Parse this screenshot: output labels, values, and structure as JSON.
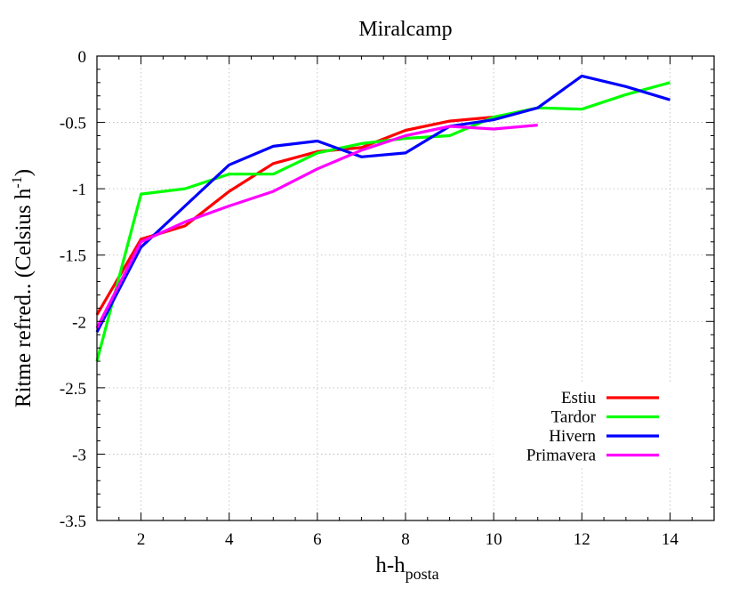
{
  "chart_data": {
    "type": "line",
    "title": "Miralcamp",
    "xlabel": {
      "main": "h-h",
      "sub": "posta"
    },
    "ylabel": {
      "main": "Ritme refred.. (Celsius h",
      "sup": "-1",
      "end": ")"
    },
    "xlim": [
      1,
      15
    ],
    "ylim": [
      -3.5,
      0
    ],
    "xticks": [
      2,
      4,
      6,
      8,
      10,
      12,
      14
    ],
    "yticks": [
      0,
      -0.5,
      -1,
      -1.5,
      -2,
      -2.5,
      -3,
      -3.5
    ],
    "ytick_labels": [
      "0",
      "-0.5",
      "-1",
      "-1.5",
      "-2",
      "-2.5",
      "-3",
      "-3.5"
    ],
    "grid": true,
    "legend_position": "bottom-right",
    "series": [
      {
        "name": "Estiu",
        "color": "#ff0000",
        "x": [
          1,
          2,
          3,
          4,
          5,
          6,
          7,
          8,
          9,
          10
        ],
        "y": [
          -1.95,
          -1.38,
          -1.28,
          -1.02,
          -0.81,
          -0.72,
          -0.69,
          -0.56,
          -0.49,
          -0.46
        ]
      },
      {
        "name": "Tardor",
        "color": "#00ff00",
        "x": [
          1,
          2,
          3,
          4,
          5,
          6,
          7,
          8,
          9,
          10,
          11,
          12,
          13,
          14
        ],
        "y": [
          -2.3,
          -1.04,
          -1.0,
          -0.89,
          -0.89,
          -0.73,
          -0.66,
          -0.62,
          -0.6,
          -0.46,
          -0.39,
          -0.4,
          -0.29,
          -0.2
        ]
      },
      {
        "name": "Hivern",
        "color": "#0000ff",
        "x": [
          1,
          2,
          3,
          4,
          5,
          6,
          7,
          8,
          9,
          10,
          11,
          12,
          13,
          14
        ],
        "y": [
          -2.08,
          -1.44,
          -1.13,
          -0.82,
          -0.68,
          -0.64,
          -0.76,
          -0.73,
          -0.53,
          -0.48,
          -0.39,
          -0.15,
          -0.23,
          -0.33
        ]
      },
      {
        "name": "Primavera",
        "color": "#ff00ff",
        "x": [
          1,
          2,
          3,
          4,
          5,
          6,
          7,
          8,
          9,
          10,
          11
        ],
        "y": [
          -2.05,
          -1.4,
          -1.25,
          -1.13,
          -1.02,
          -0.85,
          -0.71,
          -0.6,
          -0.53,
          -0.55,
          -0.52
        ]
      }
    ]
  }
}
